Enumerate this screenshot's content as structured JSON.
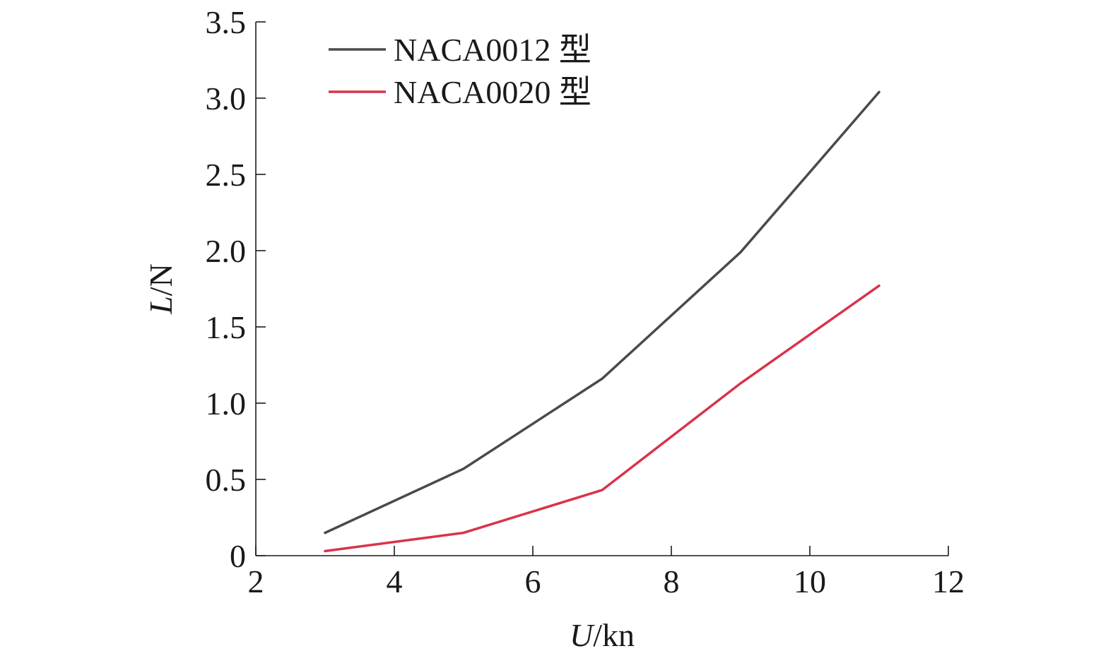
{
  "chart_data": {
    "type": "line",
    "xlabel_italic": "U",
    "xlabel_rest": "/kn",
    "ylabel_italic": "L",
    "ylabel_rest": "/N",
    "xlim": [
      2,
      12
    ],
    "ylim": [
      0,
      3.5
    ],
    "x_ticks": [
      2,
      4,
      6,
      8,
      10,
      12
    ],
    "x_tick_labels": [
      "2",
      "4",
      "6",
      "8",
      "10",
      "12"
    ],
    "y_ticks": [
      0,
      0.5,
      1.0,
      1.5,
      2.0,
      2.5,
      3.0,
      3.5
    ],
    "y_tick_labels": [
      "0",
      "0.5",
      "1.0",
      "1.5",
      "2.0",
      "2.5",
      "3.0",
      "3.5"
    ],
    "grid": false,
    "legend_position": "top-left",
    "series": [
      {
        "name": "NACA0012 型",
        "color": "#4a4a4e",
        "x": [
          3,
          5,
          7,
          9,
          11
        ],
        "y": [
          0.15,
          0.57,
          1.16,
          1.99,
          3.04
        ]
      },
      {
        "name": "NACA0020 型",
        "color": "#d9334a",
        "x": [
          3,
          5,
          7,
          9,
          11
        ],
        "y": [
          0.03,
          0.15,
          0.43,
          1.13,
          1.77
        ]
      }
    ]
  }
}
